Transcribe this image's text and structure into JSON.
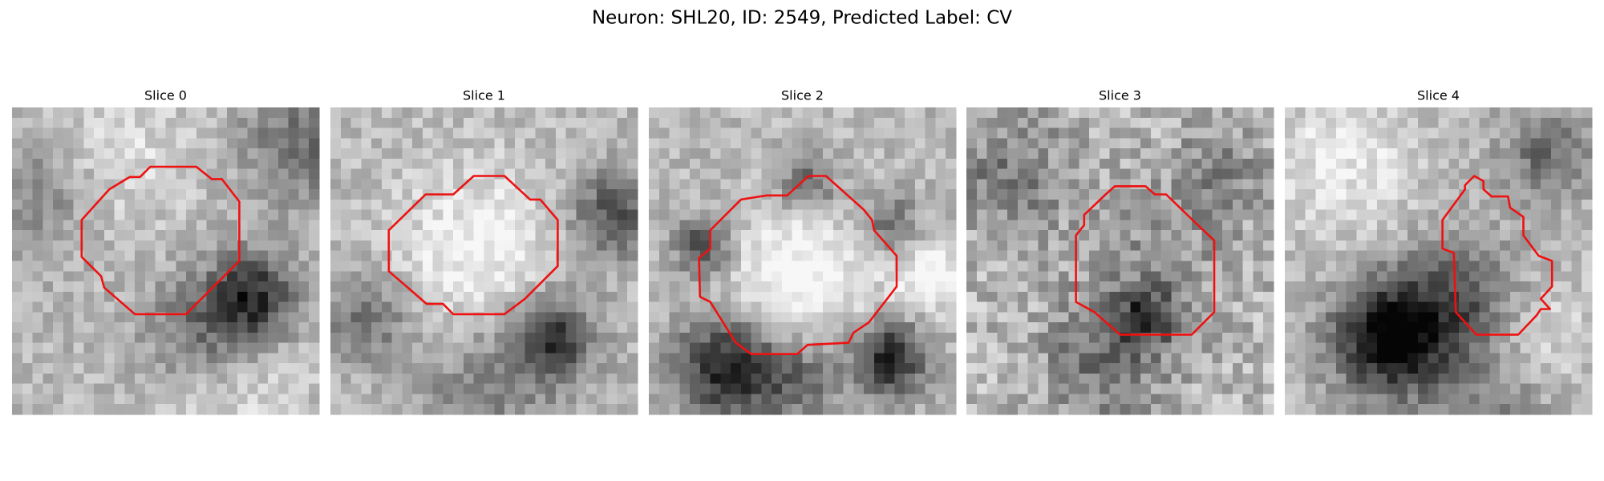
{
  "title": "Neuron: SHL20, ID: 2549, Predicted Label: CV",
  "panels": [
    {
      "title": "Slice 0"
    },
    {
      "title": "Slice 1"
    },
    {
      "title": "Slice 2"
    },
    {
      "title": "Slice 3"
    },
    {
      "title": "Slice 4"
    }
  ]
}
